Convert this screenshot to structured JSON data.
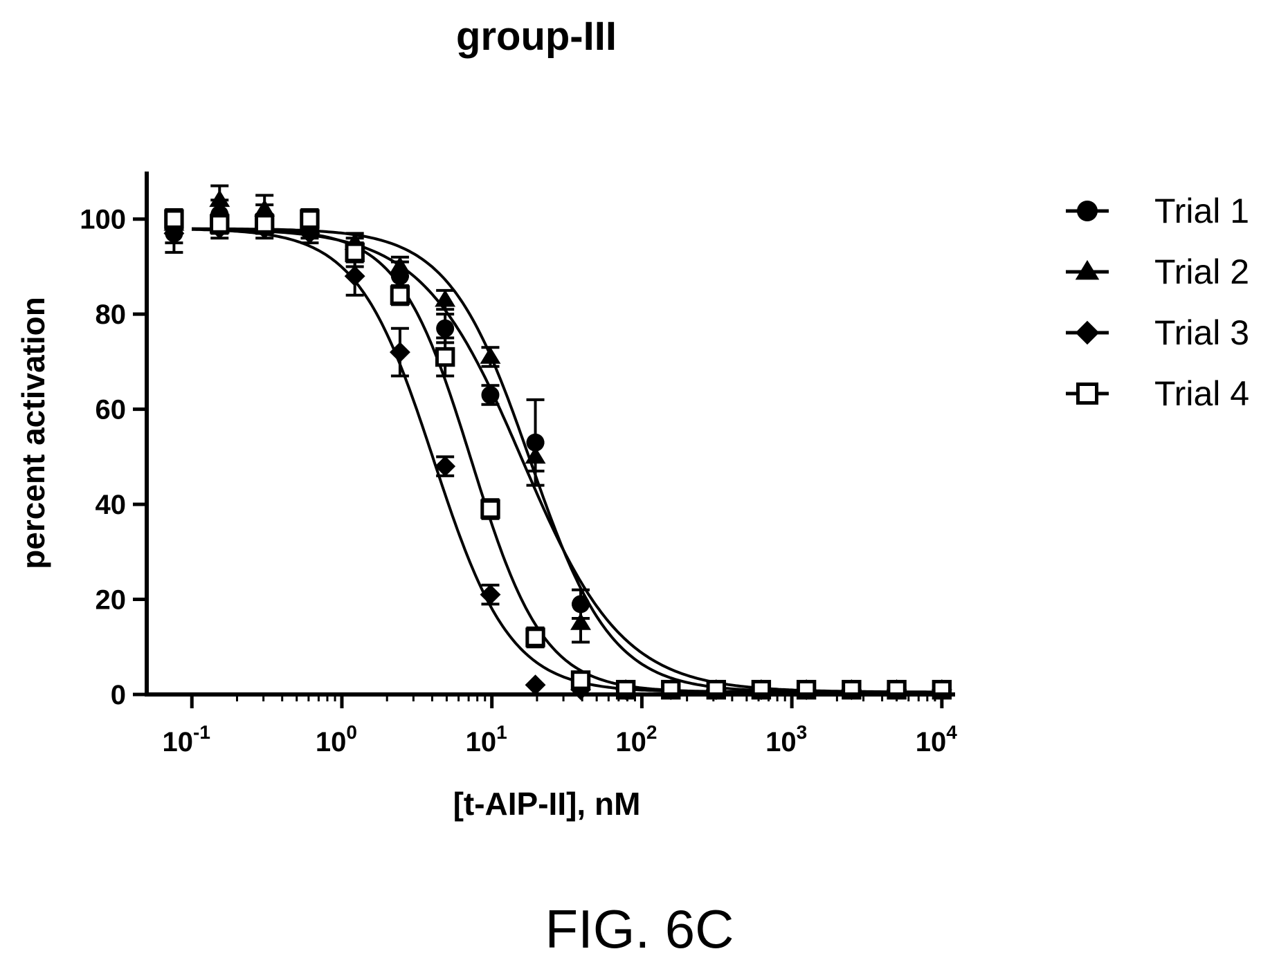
{
  "chart_data": {
    "type": "scatter",
    "title": "group-III",
    "xlabel": "[t-AIP-II], nM",
    "ylabel": "percent activation",
    "x_scale": "log",
    "xlim": [
      0.05,
      12000
    ],
    "ylim": [
      0,
      110
    ],
    "x_ticks": [
      {
        "value": 0.1,
        "base": "10",
        "exp": "-1"
      },
      {
        "value": 1,
        "base": "10",
        "exp": "0"
      },
      {
        "value": 10,
        "base": "10",
        "exp": "1"
      },
      {
        "value": 100,
        "base": "10",
        "exp": "2"
      },
      {
        "value": 1000,
        "base": "10",
        "exp": "3"
      },
      {
        "value": 10000,
        "base": "10",
        "exp": "4"
      }
    ],
    "y_ticks": [
      0,
      20,
      40,
      60,
      80,
      100
    ],
    "legend": {
      "position": "right"
    },
    "series": [
      {
        "name": "Trial 1",
        "marker": "circle",
        "x": [
          0.076,
          0.153,
          0.305,
          0.61,
          1.22,
          2.44,
          4.88,
          9.77,
          19.5,
          39.1,
          78.1,
          156,
          313,
          625,
          1250,
          2500,
          5000,
          10000
        ],
        "y": [
          97,
          101,
          100,
          99,
          93,
          88,
          77,
          63,
          53,
          19,
          1,
          1,
          1,
          1,
          1,
          1,
          1,
          1
        ],
        "err": [
          4,
          3,
          3,
          3,
          3,
          3,
          3,
          2,
          9,
          3,
          0,
          0,
          0,
          0,
          0,
          0,
          0,
          0
        ],
        "fit": {
          "top": 98,
          "bottom": 0.5,
          "ic50": 16,
          "hill": 1.3
        }
      },
      {
        "name": "Trial 2",
        "marker": "triangle",
        "x": [
          0.076,
          0.153,
          0.305,
          0.61,
          1.22,
          2.44,
          4.88,
          9.77,
          19.5,
          39.1,
          78.1,
          156,
          313,
          625,
          1250,
          2500,
          5000,
          10000
        ],
        "y": [
          99,
          104,
          102,
          99,
          95,
          90,
          83,
          71,
          50,
          15,
          1,
          1,
          1,
          1,
          1,
          1,
          1,
          1
        ],
        "err": [
          2,
          3,
          3,
          2,
          2,
          2,
          2,
          2,
          3,
          4,
          0,
          0,
          0,
          0,
          0,
          0,
          0,
          0
        ],
        "fit": {
          "top": 98,
          "bottom": 0.5,
          "ic50": 18,
          "hill": 1.6
        }
      },
      {
        "name": "Trial 3",
        "marker": "diamond",
        "x": [
          0.076,
          0.153,
          0.305,
          0.61,
          1.22,
          2.44,
          4.88,
          9.77,
          19.5,
          39.1,
          78.1,
          156,
          313,
          625,
          1250,
          2500,
          5000,
          10000
        ],
        "y": [
          97,
          98,
          98,
          97,
          88,
          72,
          48,
          21,
          2,
          1,
          1,
          1,
          1,
          1,
          1,
          1,
          1,
          1
        ],
        "err": [
          2,
          2,
          2,
          2,
          4,
          5,
          2,
          2,
          0,
          0,
          0,
          0,
          0,
          0,
          0,
          0,
          0,
          0
        ],
        "fit": {
          "top": 98,
          "bottom": 0.5,
          "ic50": 4.1,
          "hill": 1.7
        }
      },
      {
        "name": "Trial 4",
        "marker": "square-open",
        "x": [
          0.076,
          0.153,
          0.305,
          0.61,
          1.22,
          2.44,
          4.88,
          9.77,
          19.5,
          39.1,
          78.1,
          156,
          313,
          625,
          1250,
          2500,
          5000,
          10000
        ],
        "y": [
          100,
          99,
          99,
          100,
          93,
          84,
          71,
          39,
          12,
          3,
          1,
          1,
          1,
          1,
          1,
          1,
          1,
          1
        ],
        "err": [
          2,
          2,
          2,
          2,
          2,
          2,
          4,
          2,
          2,
          0,
          0,
          0,
          0,
          0,
          0,
          0,
          0,
          0
        ],
        "fit": {
          "top": 98,
          "bottom": 0.5,
          "ic50": 7.3,
          "hill": 1.8
        }
      }
    ]
  },
  "figure_label": "FIG. 6C"
}
